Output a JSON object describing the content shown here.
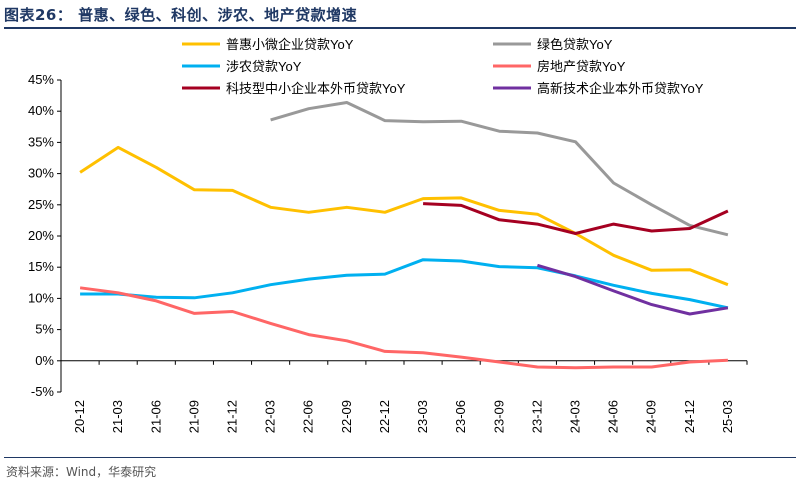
{
  "figure": {
    "title": "图表26： 普惠、绿色、科创、涉农、地产贷款增速",
    "source": "资料来源：Wind，华泰研究"
  },
  "chart_data": {
    "type": "line",
    "x": [
      "20-12",
      "21-03",
      "21-06",
      "21-09",
      "21-12",
      "22-03",
      "22-06",
      "22-09",
      "22-12",
      "23-03",
      "23-06",
      "23-09",
      "23-12",
      "24-03",
      "24-06",
      "24-09",
      "24-12",
      "25-03"
    ],
    "ylim": [
      -5,
      45
    ],
    "yticks": [
      -5,
      0,
      5,
      10,
      15,
      20,
      25,
      30,
      35,
      40,
      45
    ],
    "ytick_labels": [
      "-5%",
      "0%",
      "5%",
      "10%",
      "15%",
      "20%",
      "25%",
      "30%",
      "35%",
      "40%",
      "45%"
    ],
    "grid": false,
    "legend_position": "top",
    "series": [
      {
        "name": "普惠小微企业贷款YoY",
        "color": "#FFC000",
        "values": [
          30.2,
          34.2,
          31.0,
          27.4,
          27.3,
          24.6,
          23.8,
          24.6,
          23.8,
          26.0,
          26.1,
          24.1,
          23.5,
          20.4,
          16.9,
          14.5,
          14.6,
          12.2
        ]
      },
      {
        "name": "绿色贷款YoY",
        "color": "#999999",
        "values": [
          null,
          null,
          null,
          null,
          null,
          38.6,
          40.4,
          41.4,
          38.5,
          38.3,
          38.4,
          36.8,
          36.5,
          35.1,
          28.5,
          25.0,
          21.7,
          20.2
        ]
      },
      {
        "name": "涉农贷款YoY",
        "color": "#00B0F0",
        "values": [
          10.7,
          10.7,
          10.2,
          10.1,
          10.9,
          12.2,
          13.1,
          13.7,
          13.9,
          16.2,
          16.0,
          15.1,
          14.9,
          13.6,
          12.1,
          10.8,
          9.8,
          8.5
        ]
      },
      {
        "name": "房地产贷款YoY",
        "color": "#FF6666",
        "values": [
          11.7,
          10.9,
          9.6,
          7.6,
          7.9,
          6.0,
          4.2,
          3.2,
          1.5,
          1.3,
          0.6,
          -0.2,
          -1.0,
          -1.1,
          -1.0,
          -1.0,
          -0.2,
          0.1
        ]
      },
      {
        "name": "科技型中小企业本外币贷款YoY",
        "color": "#A50021",
        "values": [
          null,
          null,
          null,
          null,
          null,
          null,
          null,
          null,
          null,
          25.2,
          24.9,
          22.6,
          21.9,
          20.4,
          21.9,
          20.8,
          21.2,
          24.0
        ]
      },
      {
        "name": "高新技术企业本外币贷款YoY",
        "color": "#7030A0",
        "values": [
          null,
          null,
          null,
          null,
          null,
          null,
          null,
          null,
          null,
          null,
          null,
          null,
          15.3,
          13.5,
          11.2,
          9.0,
          7.5,
          8.5
        ]
      }
    ]
  }
}
